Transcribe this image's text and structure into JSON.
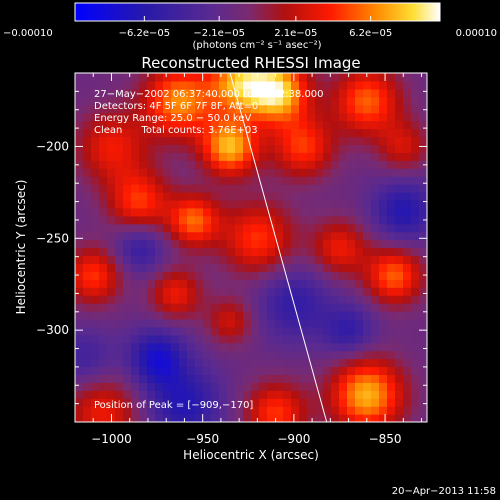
{
  "colorbar": {
    "ticks": [
      {
        "value": -0.0001,
        "label": "−0.00010"
      },
      {
        "value": -6.2e-05,
        "label": "−6.2e−05"
      },
      {
        "value": -2.1e-05,
        "label": "−2.1e−05"
      },
      {
        "value": 2.1e-05,
        "label": "2.1e−05"
      },
      {
        "value": 6.2e-05,
        "label": "6.2e−05"
      },
      {
        "value": 0.0001,
        "label": "0.00010"
      }
    ],
    "range": [
      -0.0001,
      0.0001
    ],
    "unit_label": "(photons cm⁻² s⁻¹ asec⁻²)",
    "stops": [
      {
        "value": -0.0001,
        "color": "#0000ff"
      },
      {
        "value": -6e-05,
        "color": "#2a1aa8"
      },
      {
        "value": -2.5e-05,
        "color": "#5a2a90"
      },
      {
        "value": -5e-06,
        "color": "#7a2a70"
      },
      {
        "value": 1.5e-05,
        "color": "#b01010"
      },
      {
        "value": 4e-05,
        "color": "#ff1a00"
      },
      {
        "value": 6.5e-05,
        "color": "#ff8a00"
      },
      {
        "value": 8.5e-05,
        "color": "#ffdd33"
      },
      {
        "value": 0.0001,
        "color": "#ffffff"
      }
    ]
  },
  "chart_data": {
    "type": "heatmap",
    "title": "Reconstructed RHESSI Image",
    "xlabel": "Heliocentric X (arcsec)",
    "ylabel": "Heliocentric Y (arcsec)",
    "xlim": [
      -1020,
      -827
    ],
    "ylim": [
      -350,
      -160
    ],
    "xticks": [
      {
        "value": -1000,
        "label": "−1000"
      },
      {
        "value": -950,
        "label": "−950"
      },
      {
        "value": -900,
        "label": "−900"
      },
      {
        "value": -850,
        "label": "−850"
      }
    ],
    "yticks": [
      {
        "value": -200,
        "label": "−200"
      },
      {
        "value": -250,
        "label": "−250"
      },
      {
        "value": -300,
        "label": "−300"
      }
    ],
    "annotations": [
      "27−May−2002 06:37:40.000 to 06:42:38.000",
      "Detectors: 4F 5F 6F 7F 8F, Att=0",
      "Energy Range: 25.0 − 50.0 keV",
      "Clean      Total counts: 3.76E+03"
    ],
    "peak_label": "Position of Peak = [−909,−170]",
    "peak": [
      -909,
      -170
    ],
    "limb_line": {
      "from": [
        -935,
        -160
      ],
      "to": [
        -882,
        -350
      ]
    },
    "sources": [
      {
        "x": -1000,
        "y": -200,
        "sigma": 14,
        "amp": 5e-05
      },
      {
        "x": -985,
        "y": -230,
        "sigma": 12,
        "amp": 6e-05
      },
      {
        "x": -963,
        "y": -175,
        "sigma": 14,
        "amp": 8e-05
      },
      {
        "x": -930,
        "y": -165,
        "sigma": 12,
        "amp": 8e-05
      },
      {
        "x": -935,
        "y": -200,
        "sigma": 11,
        "amp": 9e-05
      },
      {
        "x": -909,
        "y": -170,
        "sigma": 12,
        "amp": 0.0001
      },
      {
        "x": -895,
        "y": -200,
        "sigma": 12,
        "amp": 6e-05
      },
      {
        "x": -860,
        "y": -175,
        "sigma": 13,
        "amp": 7e-05
      },
      {
        "x": -840,
        "y": -200,
        "sigma": 10,
        "amp": 4e-05
      },
      {
        "x": -955,
        "y": -240,
        "sigma": 10,
        "amp": 7e-05
      },
      {
        "x": -920,
        "y": -250,
        "sigma": 14,
        "amp": 6e-05
      },
      {
        "x": -1010,
        "y": -270,
        "sigma": 11,
        "amp": 6e-05
      },
      {
        "x": -965,
        "y": -280,
        "sigma": 10,
        "amp": 5e-05
      },
      {
        "x": -935,
        "y": -295,
        "sigma": 9,
        "amp": 4e-05
      },
      {
        "x": -875,
        "y": -255,
        "sigma": 11,
        "amp": 5e-05
      },
      {
        "x": -845,
        "y": -270,
        "sigma": 11,
        "amp": 7e-05
      },
      {
        "x": -860,
        "y": -335,
        "sigma": 14,
        "amp": 9e-05
      },
      {
        "x": -910,
        "y": -345,
        "sigma": 12,
        "amp": 6e-05
      },
      {
        "x": -1005,
        "y": -345,
        "sigma": 14,
        "amp": 5e-05
      },
      {
        "x": -985,
        "y": -255,
        "sigma": 10,
        "amp": -4e-05
      },
      {
        "x": -960,
        "y": -340,
        "sigma": 14,
        "amp": -5e-05
      },
      {
        "x": -975,
        "y": -315,
        "sigma": 11,
        "amp": -6e-05
      },
      {
        "x": -900,
        "y": -285,
        "sigma": 14,
        "amp": -4e-05
      },
      {
        "x": -840,
        "y": -235,
        "sigma": 12,
        "amp": -5e-05
      },
      {
        "x": -870,
        "y": -300,
        "sigma": 10,
        "amp": -4e-05
      },
      {
        "x": -1015,
        "y": -315,
        "sigma": 11,
        "amp": -3e-05
      }
    ]
  },
  "footer_timestamp": "20−Apr−2013 11:58"
}
